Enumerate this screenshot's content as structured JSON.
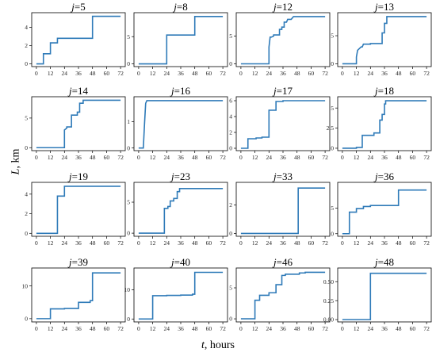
{
  "figure": {
    "ylabel_var": "L",
    "ylabel_unit": ", km",
    "xlabel_var": "t",
    "xlabel_unit": ", hours"
  },
  "chart_data": [
    {
      "type": "line",
      "title_var": "j",
      "title_val": "=5",
      "xticks": [
        0,
        12,
        24,
        36,
        48,
        60,
        72
      ],
      "yticks": [
        0,
        2,
        4
      ],
      "ylim": [
        -0.3,
        5.6
      ],
      "xlim": [
        -4,
        76
      ],
      "x": [
        0,
        6,
        6,
        12,
        12,
        18,
        18,
        48,
        48,
        72
      ],
      "y": [
        0,
        0,
        1.1,
        1.1,
        2.3,
        2.3,
        2.8,
        2.8,
        5.2,
        5.2
      ]
    },
    {
      "type": "line",
      "title_var": "j",
      "title_val": "=8",
      "xticks": [
        0,
        12,
        24,
        36,
        48,
        60,
        72
      ],
      "yticks": [
        0,
        5
      ],
      "ylim": [
        -0.5,
        9.4
      ],
      "xlim": [
        -4,
        76
      ],
      "x": [
        0,
        24,
        24,
        48,
        48,
        72
      ],
      "y": [
        0,
        0,
        5.3,
        5.3,
        8.7,
        8.7
      ]
    },
    {
      "type": "line",
      "title_var": "j",
      "title_val": "=12",
      "xticks": [
        0,
        12,
        24,
        36,
        48,
        60,
        72
      ],
      "yticks": [
        0,
        5
      ],
      "ylim": [
        -0.5,
        9.2
      ],
      "xlim": [
        -4,
        76
      ],
      "x": [
        0,
        24,
        24,
        25,
        26,
        28,
        28,
        33,
        33,
        35,
        35,
        37,
        37,
        39,
        40,
        43,
        45,
        72
      ],
      "y": [
        0,
        0,
        3,
        4.8,
        4.8,
        5,
        5.2,
        5.2,
        6.2,
        6.2,
        6.6,
        6.6,
        7.5,
        7.5,
        8,
        8,
        8.5,
        8.5
      ]
    },
    {
      "type": "line",
      "title_var": "j",
      "title_val": "=13",
      "xticks": [
        0,
        12,
        24,
        36,
        48,
        60,
        72
      ],
      "yticks": [
        0,
        5
      ],
      "ylim": [
        -0.5,
        9.1
      ],
      "xlim": [
        -4,
        76
      ],
      "x": [
        0,
        12,
        12,
        13,
        16,
        17,
        18,
        18,
        24,
        24,
        34,
        34,
        36,
        36,
        38,
        38,
        72
      ],
      "y": [
        0,
        0,
        1.2,
        2.4,
        3,
        3,
        3.5,
        3.5,
        3.5,
        3.6,
        3.6,
        5.5,
        5.5,
        7.2,
        7.2,
        8.4,
        8.4
      ]
    },
    {
      "type": "line",
      "title_var": "j",
      "title_val": "=14",
      "xticks": [
        0,
        12,
        24,
        36,
        48,
        60,
        72
      ],
      "yticks": [
        0,
        5
      ],
      "ylim": [
        -0.5,
        8.6
      ],
      "xlim": [
        -4,
        76
      ],
      "x": [
        0,
        24,
        24,
        26,
        26,
        30,
        30,
        35,
        35,
        37,
        37,
        40,
        40,
        72
      ],
      "y": [
        0,
        0,
        3,
        3.3,
        3.5,
        3.5,
        5.5,
        5.5,
        6,
        6,
        7.5,
        7.5,
        8,
        8
      ]
    },
    {
      "type": "line",
      "title_var": "j",
      "title_val": "=16",
      "xticks": [
        0,
        12,
        24,
        36,
        48,
        60,
        72
      ],
      "yticks": [
        0,
        1
      ],
      "ylim": [
        -0.1,
        1.95
      ],
      "xlim": [
        -4,
        76
      ],
      "x": [
        0,
        4,
        5,
        6,
        7,
        72
      ],
      "y": [
        0,
        0,
        0.9,
        1.7,
        1.8,
        1.8
      ]
    },
    {
      "type": "line",
      "title_var": "j",
      "title_val": "=17",
      "xticks": [
        0,
        12,
        24,
        36,
        48,
        60,
        72
      ],
      "yticks": [
        0,
        2,
        4,
        6
      ],
      "ylim": [
        -0.3,
        6.5
      ],
      "xlim": [
        -4,
        76
      ],
      "x": [
        0,
        6,
        6,
        13,
        13,
        18,
        18,
        24,
        24,
        30,
        30,
        36,
        36,
        72
      ],
      "y": [
        0,
        0,
        1.2,
        1.2,
        1.3,
        1.3,
        1.4,
        1.4,
        4.8,
        4.8,
        5.9,
        5.9,
        6,
        6
      ]
    },
    {
      "type": "line",
      "title_var": "j",
      "title_val": "=18",
      "xticks": [
        0,
        12,
        24,
        36,
        48,
        60,
        72
      ],
      "yticks": [
        0,
        2.5,
        5
      ],
      "ylim": [
        -0.3,
        6.4
      ],
      "xlim": [
        -4,
        76
      ],
      "x": [
        0,
        12,
        12,
        17,
        17,
        27,
        27,
        32,
        32,
        34,
        34,
        36,
        36,
        37,
        37,
        72
      ],
      "y": [
        0,
        0,
        0.1,
        0.1,
        1.6,
        1.6,
        1.9,
        1.9,
        3.5,
        3.5,
        4.2,
        4.2,
        5.5,
        5.5,
        5.9,
        5.9
      ]
    },
    {
      "type": "line",
      "title_var": "j",
      "title_val": "=19",
      "xticks": [
        0,
        12,
        24,
        36,
        48,
        60,
        72
      ],
      "yticks": [
        0,
        2,
        4
      ],
      "ylim": [
        -0.3,
        5.2
      ],
      "xlim": [
        -4,
        76
      ],
      "x": [
        0,
        18,
        18,
        24,
        24,
        72
      ],
      "y": [
        0,
        0,
        3.8,
        3.8,
        4.8,
        4.8
      ]
    },
    {
      "type": "line",
      "title_var": "j",
      "title_val": "=23",
      "xticks": [
        0,
        12,
        24,
        36,
        48,
        60,
        72
      ],
      "yticks": [
        0,
        5
      ],
      "ylim": [
        -0.5,
        8.2
      ],
      "xlim": [
        -4,
        76
      ],
      "x": [
        0,
        22,
        22,
        25,
        25,
        27,
        27,
        30,
        30,
        33,
        33,
        35,
        35,
        72
      ],
      "y": [
        0,
        0,
        4,
        4,
        4.3,
        4.3,
        5.2,
        5.2,
        5.6,
        5.6,
        6.7,
        6.7,
        7.2,
        7.2
      ]
    },
    {
      "type": "line",
      "title_var": "j",
      "title_val": "=33",
      "xticks": [
        0,
        12,
        24,
        36,
        48,
        60,
        72
      ],
      "yticks": [
        0,
        2
      ],
      "ylim": [
        -0.2,
        3.6
      ],
      "xlim": [
        -4,
        76
      ],
      "x": [
        0,
        49,
        49,
        72
      ],
      "y": [
        0,
        0,
        3.2,
        3.2
      ]
    },
    {
      "type": "line",
      "title_var": "j",
      "title_val": "=36",
      "xticks": [
        0,
        12,
        24,
        36,
        48,
        60,
        72
      ],
      "yticks": [
        0,
        5
      ],
      "ylim": [
        -0.5,
        10
      ],
      "xlim": [
        -4,
        76
      ],
      "x": [
        0,
        6,
        6,
        12,
        12,
        18,
        18,
        24,
        24,
        48,
        48,
        72
      ],
      "y": [
        0,
        0,
        4.2,
        4.2,
        4.9,
        4.9,
        5.3,
        5.3,
        5.5,
        5.5,
        8.5,
        8.5
      ]
    },
    {
      "type": "line",
      "title_var": "j",
      "title_val": "=39",
      "xticks": [
        0,
        12,
        24,
        36,
        48,
        60,
        72
      ],
      "yticks": [
        0,
        10
      ],
      "ylim": [
        -1,
        15.5
      ],
      "xlim": [
        -4,
        76
      ],
      "x": [
        0,
        12,
        12,
        24,
        24,
        36,
        36,
        46,
        46,
        48,
        48,
        72
      ],
      "y": [
        0,
        0,
        3,
        3,
        3.1,
        3.1,
        5,
        5,
        5.5,
        5.5,
        14,
        14
      ]
    },
    {
      "type": "line",
      "title_var": "j",
      "title_val": "=40",
      "xticks": [
        0,
        12,
        24,
        36,
        48,
        60,
        72
      ],
      "yticks": [
        0,
        10
      ],
      "ylim": [
        -1,
        17.5
      ],
      "xlim": [
        -4,
        76
      ],
      "x": [
        0,
        12,
        12,
        24,
        24,
        36,
        36,
        46,
        46,
        48,
        48,
        72
      ],
      "y": [
        0,
        0,
        8,
        8,
        8.1,
        8.1,
        8.2,
        8.2,
        8.5,
        8.5,
        16,
        16
      ]
    },
    {
      "type": "line",
      "title_var": "j",
      "title_val": "=46",
      "xticks": [
        0,
        12,
        24,
        36,
        48,
        60,
        72
      ],
      "yticks": [
        0,
        5
      ],
      "ylim": [
        -0.5,
        8.2
      ],
      "xlim": [
        -4,
        76
      ],
      "x": [
        0,
        12,
        12,
        16,
        16,
        24,
        24,
        30,
        30,
        35,
        35,
        38,
        38,
        50,
        50,
        55,
        55,
        72
      ],
      "y": [
        0,
        0,
        3,
        3,
        3.8,
        3.8,
        4.2,
        4.2,
        5.5,
        5.5,
        7,
        7,
        7.2,
        7.2,
        7.4,
        7.4,
        7.5,
        7.5
      ]
    },
    {
      "type": "line",
      "title_var": "j",
      "title_val": "=48",
      "xticks": [
        0,
        12,
        24,
        36,
        48,
        60,
        72
      ],
      "yticks": [
        0,
        0.25,
        0.5
      ],
      "yticklabels": [
        "0.00",
        "0.25",
        "0.50"
      ],
      "ylim": [
        -0.03,
        0.68
      ],
      "xlim": [
        -4,
        76
      ],
      "x": [
        0,
        24,
        24,
        72
      ],
      "y": [
        0,
        0,
        0.61,
        0.61
      ]
    }
  ]
}
